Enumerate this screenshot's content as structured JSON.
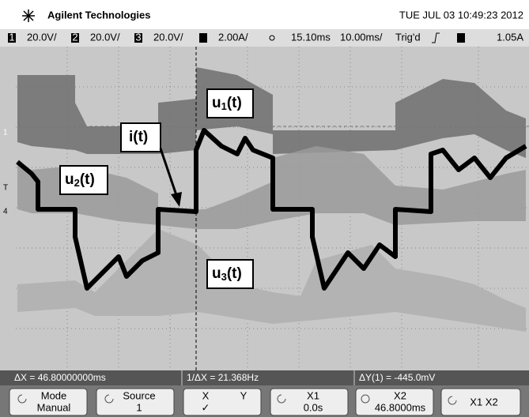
{
  "header": {
    "brand": "Agilent Technologies",
    "datetime": "TUE JUL 03 10:49:23 2012"
  },
  "status_bar": {
    "channels": [
      {
        "number": "1",
        "scale": "20.0V/"
      },
      {
        "number": "2",
        "scale": "20.0V/"
      },
      {
        "number": "3",
        "scale": "20.0V/"
      }
    ],
    "current_scale": "2.00A/",
    "time_position": "15.10ms",
    "time_scale": "10.00ms/",
    "trigger_state": "Trig'd",
    "trigger_level": "1.05A"
  },
  "screen": {
    "markers": [
      "1",
      "T",
      "4"
    ],
    "labels": [
      {
        "base": "u",
        "sub": "1",
        "tail": "(t)"
      },
      {
        "text": "i(t)"
      },
      {
        "base": "u",
        "sub": "2",
        "tail": "(t)"
      },
      {
        "base": "u",
        "sub": "3",
        "tail": "(t)"
      }
    ]
  },
  "measurements": [
    "ΔX = 46.80000000ms",
    "1/ΔX = 21.368Hz",
    "ΔY(1) = -445.0mV"
  ],
  "softkeys": [
    {
      "label": "Mode",
      "value": "Manual"
    },
    {
      "label": "Source",
      "value": "1"
    },
    {
      "label": "X",
      "label2": "Y",
      "value": "✓"
    },
    {
      "label": "X1",
      "value": "0.0s"
    },
    {
      "label": "X2",
      "value": "46.8000ms"
    },
    {
      "label": "X1 X2"
    }
  ]
}
